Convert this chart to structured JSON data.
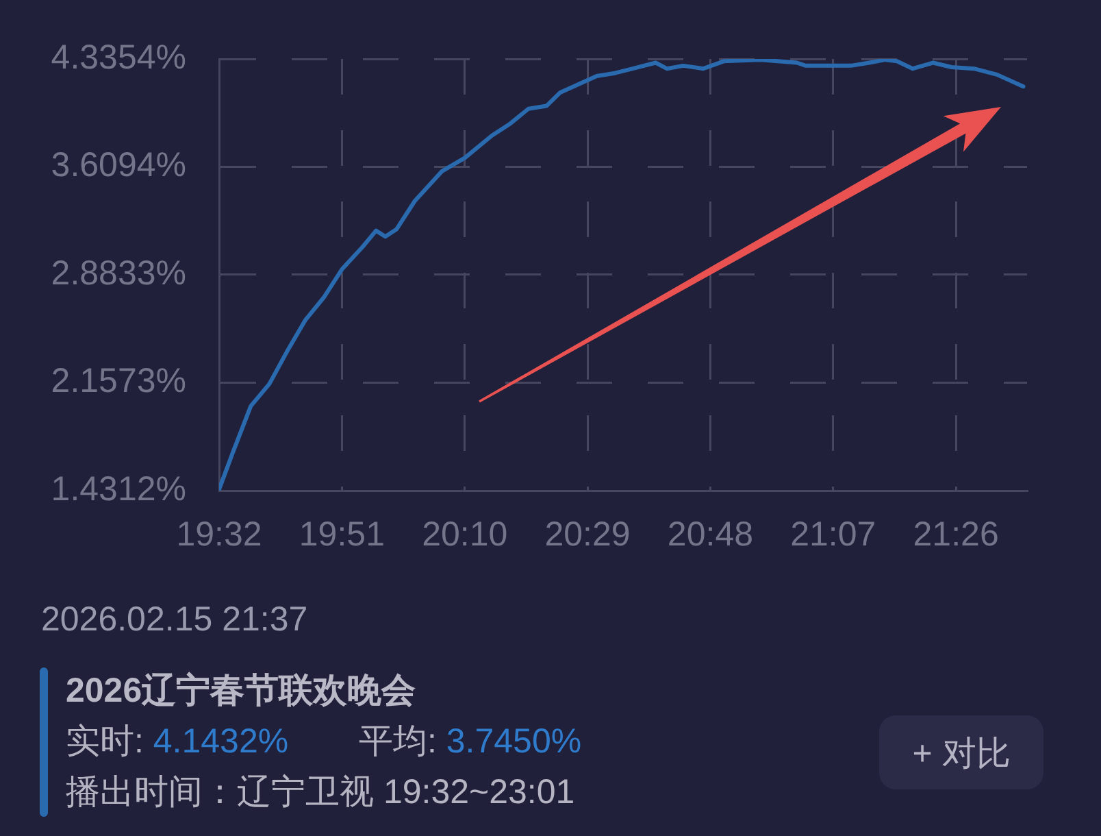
{
  "chart_data": {
    "type": "line",
    "title": "2026辽宁春节联欢晚会",
    "x": [
      19.5333,
      19.569,
      19.615,
      19.663,
      19.709,
      19.756,
      19.803,
      19.85,
      19.903,
      19.938,
      19.962,
      19.991,
      20.038,
      20.108,
      20.167,
      20.237,
      20.284,
      20.331,
      20.378,
      20.413,
      20.507,
      20.554,
      20.6,
      20.659,
      20.688,
      20.73,
      20.782,
      20.835,
      20.929,
      21.023,
      21.046,
      21.163,
      21.21,
      21.251,
      21.281,
      21.322,
      21.374,
      21.422,
      21.48,
      21.539,
      21.607
    ],
    "values": [
      1.44,
      1.69,
      2.0,
      2.15,
      2.37,
      2.58,
      2.73,
      2.92,
      3.07,
      3.18,
      3.14,
      3.19,
      3.38,
      3.58,
      3.67,
      3.82,
      3.9,
      4.0,
      4.02,
      4.11,
      4.22,
      4.24,
      4.27,
      4.31,
      4.27,
      4.29,
      4.27,
      4.32,
      4.33,
      4.31,
      4.29,
      4.29,
      4.31,
      4.33,
      4.32,
      4.27,
      4.31,
      4.28,
      4.27,
      4.23,
      4.15
    ],
    "color": "#2a6bb0",
    "xlim": [
      19.5333,
      21.6167
    ],
    "xticks": [
      {
        "value": 19.5333,
        "label": "19:32"
      },
      {
        "value": 19.85,
        "label": "19:51"
      },
      {
        "value": 20.1667,
        "label": "20:10"
      },
      {
        "value": 20.4833,
        "label": "20:29"
      },
      {
        "value": 20.8,
        "label": "20:48"
      },
      {
        "value": 21.1167,
        "label": "21:07"
      },
      {
        "value": 21.4333,
        "label": "21:26"
      }
    ],
    "ylim": [
      1.4312,
      4.3354
    ],
    "yticks": [
      {
        "value": 1.4312,
        "label": "1.4312%"
      },
      {
        "value": 2.1573,
        "label": "2.1573%"
      },
      {
        "value": 2.8833,
        "label": "2.8833%"
      },
      {
        "value": 3.6094,
        "label": "3.6094%"
      },
      {
        "value": 4.3354,
        "label": "4.3354%"
      }
    ],
    "grid": true,
    "marker": "none",
    "annotations": [
      "2026.02.15 21:37",
      "实时: 4.1432%",
      "平均: 3.7450%",
      "播出时间：辽宁卫视 19:32~23:01",
      "+ 对比"
    ]
  }
}
